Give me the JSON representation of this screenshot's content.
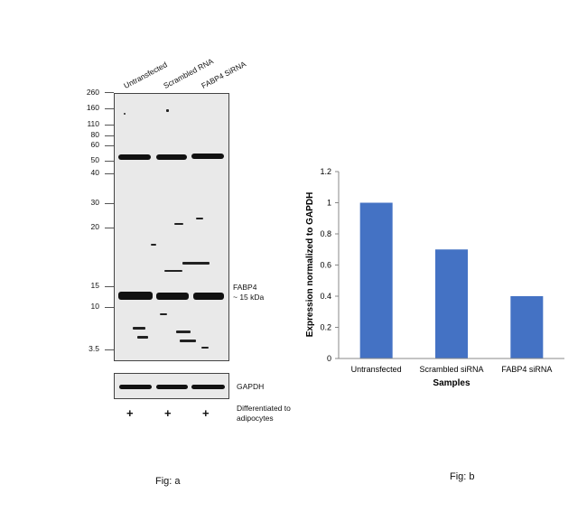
{
  "figure_a": {
    "lanes": [
      "Untransfected",
      "Scrambled RNA",
      "FABP4 SiRNA"
    ],
    "mw_markers": [
      "260",
      "160",
      "110",
      "80",
      "60",
      "50",
      "40",
      "30",
      "20",
      "15",
      "10",
      "3.5"
    ],
    "band_label_line1": "FABP4",
    "band_label_line2": "~ 15 kDa",
    "loading_control": "GAPDH",
    "treatment_symbols": [
      "+",
      "+",
      "+"
    ],
    "treatment_line1": "Differentiated to",
    "treatment_line2": "adipocytes",
    "caption": "Fig: a"
  },
  "figure_b": {
    "caption": "Fig: b"
  },
  "chart_data": {
    "type": "bar",
    "categories": [
      "Untransfected",
      "Scrambled siRNA",
      "FABP4 siRNA"
    ],
    "values": [
      1.0,
      0.7,
      0.4
    ],
    "title": "",
    "xlabel": "Samples",
    "ylabel": "Expression normalized to GAPDH",
    "ylim": [
      0,
      1.2
    ],
    "yticks": [
      "0",
      "0.2",
      "0.4",
      "0.6",
      "0.8",
      "1",
      "1.2"
    ],
    "bar_color": "#4472c4",
    "grid": false
  }
}
